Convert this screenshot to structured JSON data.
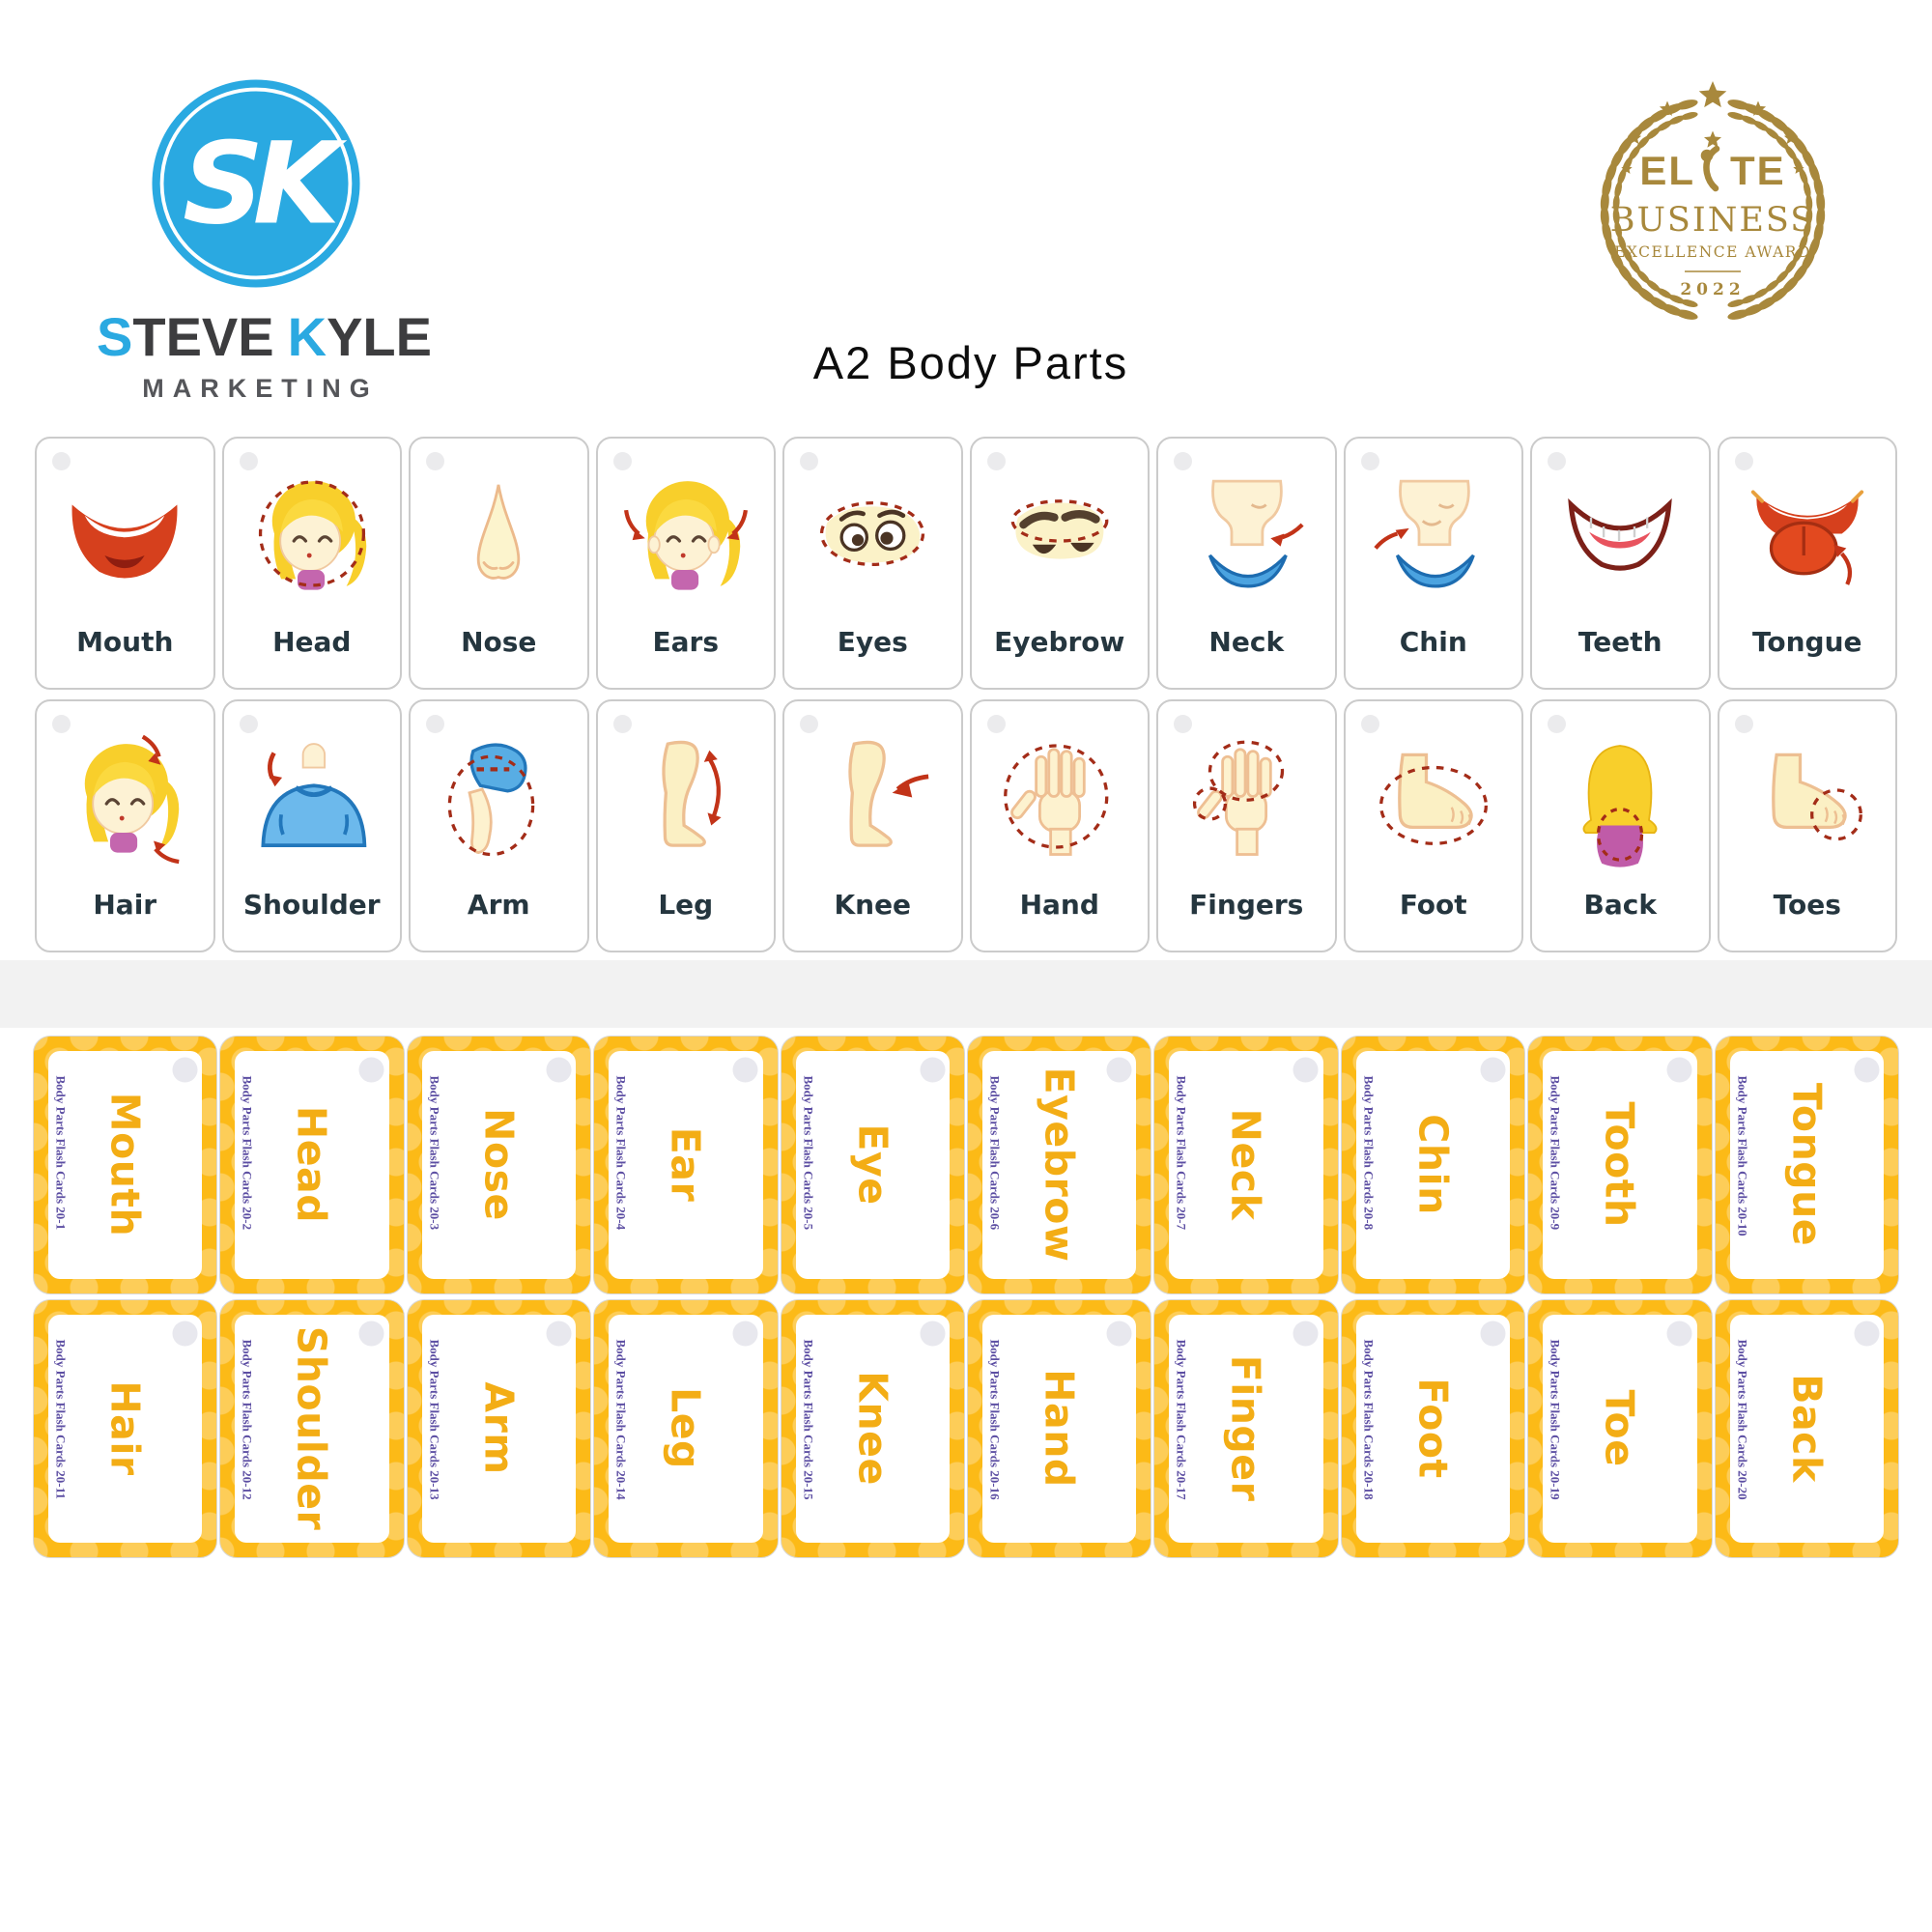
{
  "title": "A2 Body Parts",
  "brand": {
    "monogram": "SK",
    "first_initial": "S",
    "first_rest": "TEVE",
    "second_initial": "K",
    "second_rest": "YLE",
    "subtitle": "MARKETING"
  },
  "award": {
    "line1": "ELITE",
    "line2": "BUSINESS",
    "line3": "EXCELLENCE AWARD",
    "year": "2022"
  },
  "colors": {
    "brand_blue": "#2aa9e1",
    "brand_dark": "#3d3d3f",
    "brand_gray": "#55565a",
    "award_gold": "#a8883c",
    "title_color": "#0d0d0d",
    "picture_card_border": "#cbcbcb",
    "picture_label": "#25363f",
    "yellow_card": "#fcba17",
    "word_text": "#f3ad15",
    "footnote_purple": "#5d4fa3",
    "divider_band": "#f2f2f2"
  },
  "picture_cards": {
    "rows": [
      [
        {
          "label": "Mouth",
          "icon": "mouth-icon"
        },
        {
          "label": "Head",
          "icon": "head-icon"
        },
        {
          "label": "Nose",
          "icon": "nose-icon"
        },
        {
          "label": "Ears",
          "icon": "ears-icon"
        },
        {
          "label": "Eyes",
          "icon": "eyes-icon"
        },
        {
          "label": "Eyebrow",
          "icon": "eyebrow-icon"
        },
        {
          "label": "Neck",
          "icon": "neck-icon"
        },
        {
          "label": "Chin",
          "icon": "chin-icon"
        },
        {
          "label": "Teeth",
          "icon": "teeth-icon"
        },
        {
          "label": "Tongue",
          "icon": "tongue-icon"
        }
      ],
      [
        {
          "label": "Hair",
          "icon": "hair-icon"
        },
        {
          "label": "Shoulder",
          "icon": "shoulder-icon"
        },
        {
          "label": "Arm",
          "icon": "arm-icon"
        },
        {
          "label": "Leg",
          "icon": "leg-icon"
        },
        {
          "label": "Knee",
          "icon": "knee-icon"
        },
        {
          "label": "Hand",
          "icon": "hand-icon"
        },
        {
          "label": "Fingers",
          "icon": "fingers-icon"
        },
        {
          "label": "Foot",
          "icon": "foot-icon"
        },
        {
          "label": "Back",
          "icon": "back-icon"
        },
        {
          "label": "Toes",
          "icon": "toes-icon"
        }
      ]
    ]
  },
  "word_cards": {
    "rows": [
      [
        {
          "word": "Mouth",
          "footnote": "Body Parts Flash Cards 20-1"
        },
        {
          "word": "Head",
          "footnote": "Body Parts Flash Cards 20-2"
        },
        {
          "word": "Nose",
          "footnote": "Body Parts Flash Cards 20-3"
        },
        {
          "word": "Ear",
          "footnote": "Body Parts Flash Cards 20-4"
        },
        {
          "word": "Eye",
          "footnote": "Body Parts Flash Cards 20-5"
        },
        {
          "word": "Eyebrow",
          "footnote": "Body Parts Flash Cards 20-6"
        },
        {
          "word": "Neck",
          "footnote": "Body Parts Flash Cards 20-7"
        },
        {
          "word": "Chin",
          "footnote": "Body Parts Flash Cards 20-8"
        },
        {
          "word": "Tooth",
          "footnote": "Body Parts Flash Cards 20-9"
        },
        {
          "word": "Tongue",
          "footnote": "Body Parts Flash Cards 20-10"
        }
      ],
      [
        {
          "word": "Hair",
          "footnote": "Body Parts Flash Cards 20-11"
        },
        {
          "word": "Shoulder",
          "footnote": "Body Parts Flash Cards 20-12"
        },
        {
          "word": "Arm",
          "footnote": "Body Parts Flash Cards 20-13"
        },
        {
          "word": "Leg",
          "footnote": "Body Parts Flash Cards 20-14"
        },
        {
          "word": "Knee",
          "footnote": "Body Parts Flash Cards 20-15"
        },
        {
          "word": "Hand",
          "footnote": "Body Parts Flash Cards 20-16"
        },
        {
          "word": "Finger",
          "footnote": "Body Parts Flash Cards 20-17"
        },
        {
          "word": "Foot",
          "footnote": "Body Parts Flash Cards 20-18"
        },
        {
          "word": "Toe",
          "footnote": "Body Parts Flash Cards 20-19"
        },
        {
          "word": "Back",
          "footnote": "Body Parts Flash Cards 20-20"
        }
      ]
    ]
  }
}
